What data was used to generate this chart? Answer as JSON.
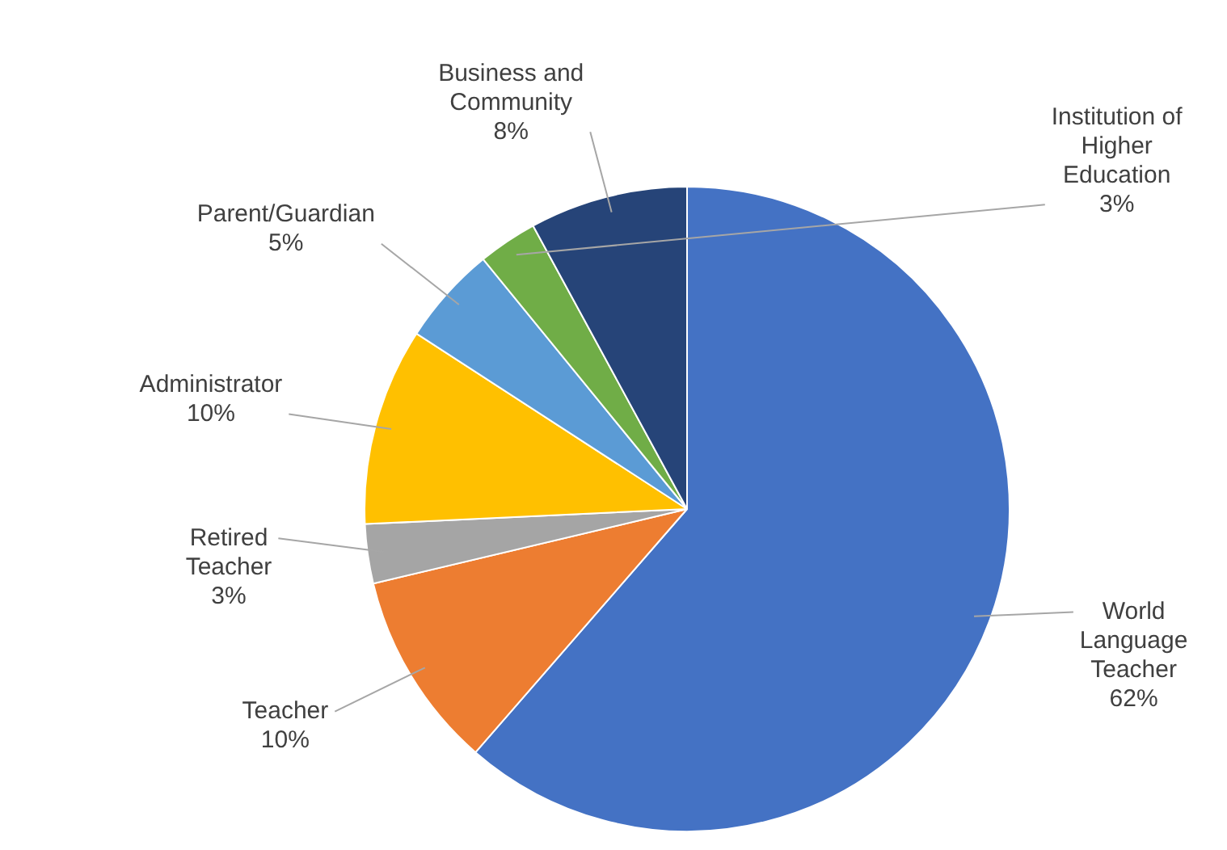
{
  "chart_data": {
    "type": "pie",
    "categories": [
      "World Language Teacher",
      "Teacher",
      "Retired Teacher",
      "Administrator",
      "Parent/Guardian",
      "Institution of Higher Education",
      "Business and Community"
    ],
    "values": [
      62,
      10,
      3,
      10,
      5,
      3,
      8
    ],
    "value_labels": [
      "62%",
      "10%",
      "3%",
      "10%",
      "5%",
      "3%",
      "8%"
    ],
    "colors": [
      "#4472c4",
      "#ed7d31",
      "#a5a5a5",
      "#ffc000",
      "#5b9bd5",
      "#70ad47",
      "#264478"
    ],
    "legend": false
  }
}
